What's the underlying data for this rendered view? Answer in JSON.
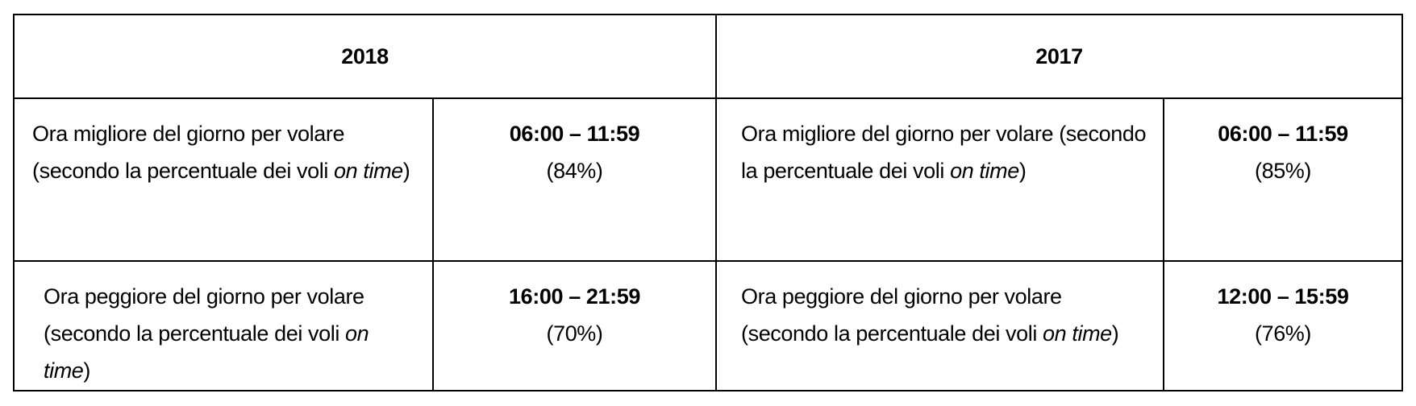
{
  "headers": [
    "2018",
    "2017"
  ],
  "rows": [
    {
      "label_prefix": "Ora migliore del giorno per volare (secondo la percentuale dei voli ",
      "label_italic": "on time",
      "label_suffix": ")",
      "y2018": {
        "time": "06:00 – 11:59",
        "pct": "(84%)"
      },
      "y2017": {
        "time": "06:00 – 11:59",
        "pct": "(85%)"
      }
    },
    {
      "label_prefix": "Ora peggiore del giorno per volare (secondo la percentuale dei voli ",
      "label_italic": "on time",
      "label_suffix": ")",
      "y2018": {
        "time": "16:00 – 21:59",
        "pct": "(70%)"
      },
      "y2017": {
        "time": "12:00 – 15:59",
        "pct": "(76%)"
      }
    }
  ]
}
